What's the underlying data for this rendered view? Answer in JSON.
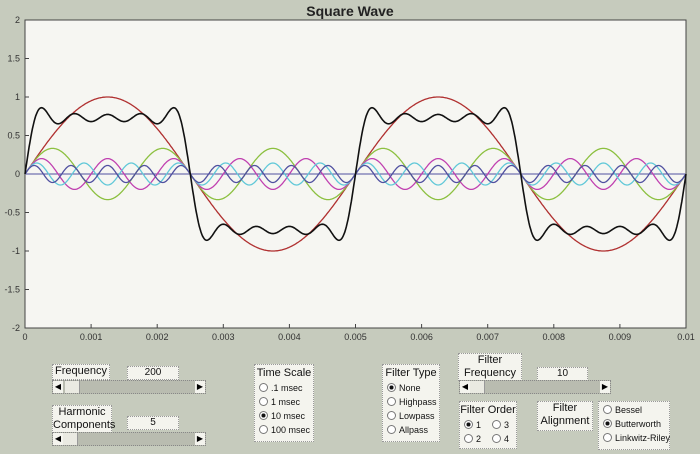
{
  "title": "Square Wave",
  "chart_data": {
    "type": "line",
    "title": "Square Wave",
    "xlim": [
      0,
      0.01
    ],
    "ylim": [
      -2,
      2
    ],
    "xticks": [
      "0",
      "0.001",
      "0.002",
      "0.003",
      "0.004",
      "0.005",
      "0.006",
      "0.007",
      "0.008",
      "0.009",
      "0.01"
    ],
    "yticks": [
      "2",
      "1.5",
      "1",
      "0.5",
      "0",
      "-0.5",
      "-1",
      "-1.5",
      "-2"
    ],
    "fundamental_hz": 200,
    "harmonics": [
      {
        "n": 1,
        "amplitude": 1,
        "color": "#b03030"
      },
      {
        "n": 3,
        "amplitude": 0.333,
        "color": "#8cc040"
      },
      {
        "n": 5,
        "amplitude": 0.2,
        "color": "#c040b0"
      },
      {
        "n": 7,
        "amplitude": 0.143,
        "color": "#60c8d8"
      },
      {
        "n": 9,
        "amplitude": 0.111,
        "color": "#5050a0"
      }
    ],
    "sum_color": "#111111",
    "sum_scale": 0.785
  },
  "controls": {
    "frequency": {
      "label": "Frequency",
      "value": "200",
      "slider_fraction": 0.02
    },
    "harmonics": {
      "label1": "Harmonic",
      "label2": "Components",
      "value": "5",
      "slider_fraction": 0.0
    },
    "time_scale": {
      "label": "Time Scale",
      "options": [
        ".1 msec",
        "1 msec",
        "10 msec",
        "100 msec"
      ],
      "selected": 2
    },
    "filter_type": {
      "label": "Filter Type",
      "options": [
        "None",
        "Highpass",
        "Lowpass",
        "Allpass"
      ],
      "selected": 0
    },
    "filter_frequency": {
      "label1": "Filter",
      "label2": "Frequency",
      "value": "10",
      "slider_fraction": 0.0
    },
    "filter_order": {
      "label": "Filter Order",
      "options": [
        "1",
        "3",
        "2",
        "4"
      ],
      "selected": 0
    },
    "filter_alignment": {
      "label1": "Filter",
      "label2": "Alignment",
      "options": [
        "Bessel",
        "Butterworth",
        "Linkwitz-Riley"
      ],
      "selected": 1
    }
  }
}
